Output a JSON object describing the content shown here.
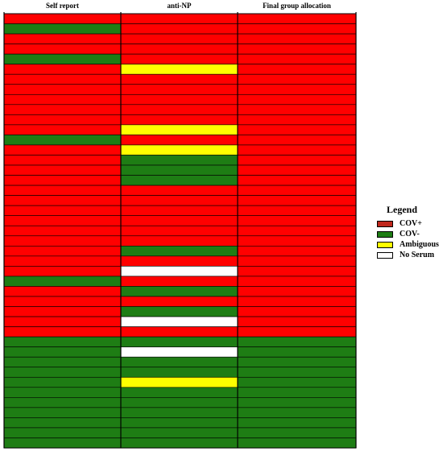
{
  "chart_data": {
    "type": "heatmap",
    "columns": [
      "Self report",
      "anti-NP",
      "Final group allocation"
    ],
    "legend": {
      "title": "Legend",
      "items": [
        {
          "key": "pos",
          "label": "COV+",
          "color": "#c0281c"
        },
        {
          "key": "neg",
          "label": "COV-",
          "color": "#1e7d14"
        },
        {
          "key": "amb",
          "label": "Ambiguous",
          "color": "#ffff00"
        },
        {
          "key": "none",
          "label": "No Serum",
          "color": "#ffffff"
        }
      ]
    },
    "colors": {
      "pos": "#ff0000",
      "neg": "#1e7d14",
      "amb": "#ffff00",
      "none": "#ffffff"
    },
    "rows": [
      [
        "pos",
        "pos",
        "pos"
      ],
      [
        "neg",
        "pos",
        "pos"
      ],
      [
        "pos",
        "pos",
        "pos"
      ],
      [
        "pos",
        "pos",
        "pos"
      ],
      [
        "neg",
        "pos",
        "pos"
      ],
      [
        "pos",
        "amb",
        "pos"
      ],
      [
        "pos",
        "pos",
        "pos"
      ],
      [
        "pos",
        "pos",
        "pos"
      ],
      [
        "pos",
        "pos",
        "pos"
      ],
      [
        "pos",
        "pos",
        "pos"
      ],
      [
        "pos",
        "pos",
        "pos"
      ],
      [
        "pos",
        "amb",
        "pos"
      ],
      [
        "neg",
        "pos",
        "pos"
      ],
      [
        "pos",
        "amb",
        "pos"
      ],
      [
        "pos",
        "neg",
        "pos"
      ],
      [
        "pos",
        "neg",
        "pos"
      ],
      [
        "pos",
        "neg",
        "pos"
      ],
      [
        "pos",
        "pos",
        "pos"
      ],
      [
        "pos",
        "pos",
        "pos"
      ],
      [
        "pos",
        "pos",
        "pos"
      ],
      [
        "pos",
        "pos",
        "pos"
      ],
      [
        "pos",
        "pos",
        "pos"
      ],
      [
        "pos",
        "pos",
        "pos"
      ],
      [
        "pos",
        "neg",
        "pos"
      ],
      [
        "pos",
        "pos",
        "pos"
      ],
      [
        "pos",
        "none",
        "pos"
      ],
      [
        "neg",
        "pos",
        "pos"
      ],
      [
        "pos",
        "neg",
        "pos"
      ],
      [
        "pos",
        "pos",
        "pos"
      ],
      [
        "pos",
        "neg",
        "pos"
      ],
      [
        "pos",
        "none",
        "pos"
      ],
      [
        "pos",
        "pos",
        "pos"
      ],
      [
        "neg",
        "neg",
        "neg"
      ],
      [
        "neg",
        "none",
        "neg"
      ],
      [
        "neg",
        "neg",
        "neg"
      ],
      [
        "neg",
        "neg",
        "neg"
      ],
      [
        "neg",
        "amb",
        "neg"
      ],
      [
        "neg",
        "neg",
        "neg"
      ],
      [
        "neg",
        "neg",
        "neg"
      ],
      [
        "neg",
        "neg",
        "neg"
      ],
      [
        "neg",
        "neg",
        "neg"
      ],
      [
        "neg",
        "neg",
        "neg"
      ],
      [
        "neg",
        "neg",
        "neg"
      ]
    ]
  }
}
